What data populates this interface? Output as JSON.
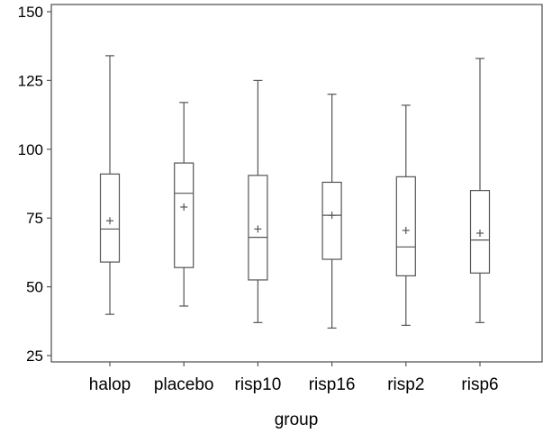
{
  "chart_data": {
    "type": "boxplot",
    "xlabel": "group",
    "ylabel": "",
    "ylim": [
      25,
      150
    ],
    "yticks": [
      25,
      50,
      75,
      100,
      125,
      150
    ],
    "grid": false,
    "categories": [
      "halop",
      "placebo",
      "risp10",
      "risp16",
      "risp2",
      "risp6"
    ],
    "boxes": [
      {
        "name": "halop",
        "min": 40,
        "q1": 59,
        "median": 71,
        "q3": 91,
        "max": 134,
        "mean": 74
      },
      {
        "name": "placebo",
        "min": 43,
        "q1": 57,
        "median": 84,
        "q3": 95,
        "max": 117,
        "mean": 79
      },
      {
        "name": "risp10",
        "min": 37,
        "q1": 52.5,
        "median": 68,
        "q3": 90.5,
        "max": 125,
        "mean": 71
      },
      {
        "name": "risp16",
        "min": 35,
        "q1": 60,
        "median": 76,
        "q3": 88,
        "max": 120,
        "mean": 76
      },
      {
        "name": "risp2",
        "min": 36,
        "q1": 54,
        "median": 64.5,
        "q3": 90,
        "max": 116,
        "mean": 70.5
      },
      {
        "name": "risp6",
        "min": 37,
        "q1": 55,
        "median": 67,
        "q3": 85,
        "max": 133,
        "mean": 69.5
      }
    ]
  }
}
